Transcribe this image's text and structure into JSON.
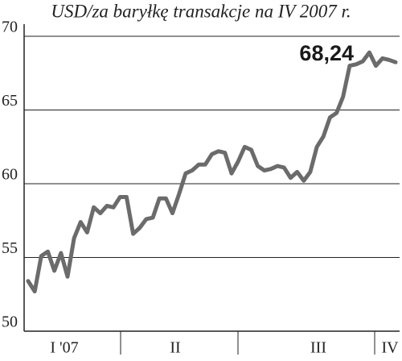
{
  "chart_data": {
    "type": "line",
    "title": "USD/za baryłkę   transakcje na IV 2007 r.",
    "annotation": "68,24",
    "quarters": [
      "I '07",
      "II",
      "III",
      "IV"
    ],
    "color": "#6b6b6b",
    "ylim": [
      50,
      70
    ],
    "yticks": [
      50,
      55,
      60,
      65,
      70
    ],
    "grid": true,
    "values": [
      53.4,
      52.7,
      55.1,
      55.4,
      54.1,
      55.3,
      53.7,
      56.3,
      57.4,
      56.7,
      58.4,
      58.0,
      58.5,
      58.4,
      59.1,
      59.1,
      56.6,
      57.0,
      57.6,
      57.7,
      59.0,
      59.0,
      58.0,
      59.3,
      60.7,
      60.9,
      61.3,
      61.3,
      62.0,
      62.2,
      62.1,
      60.7,
      61.5,
      62.5,
      62.3,
      61.2,
      60.9,
      61.0,
      61.2,
      61.1,
      60.4,
      60.8,
      60.2,
      60.8,
      62.5,
      63.2,
      64.5,
      64.8,
      65.9,
      68.0,
      68.1,
      68.3,
      68.9,
      68.0,
      68.5,
      68.4,
      68.24
    ]
  }
}
